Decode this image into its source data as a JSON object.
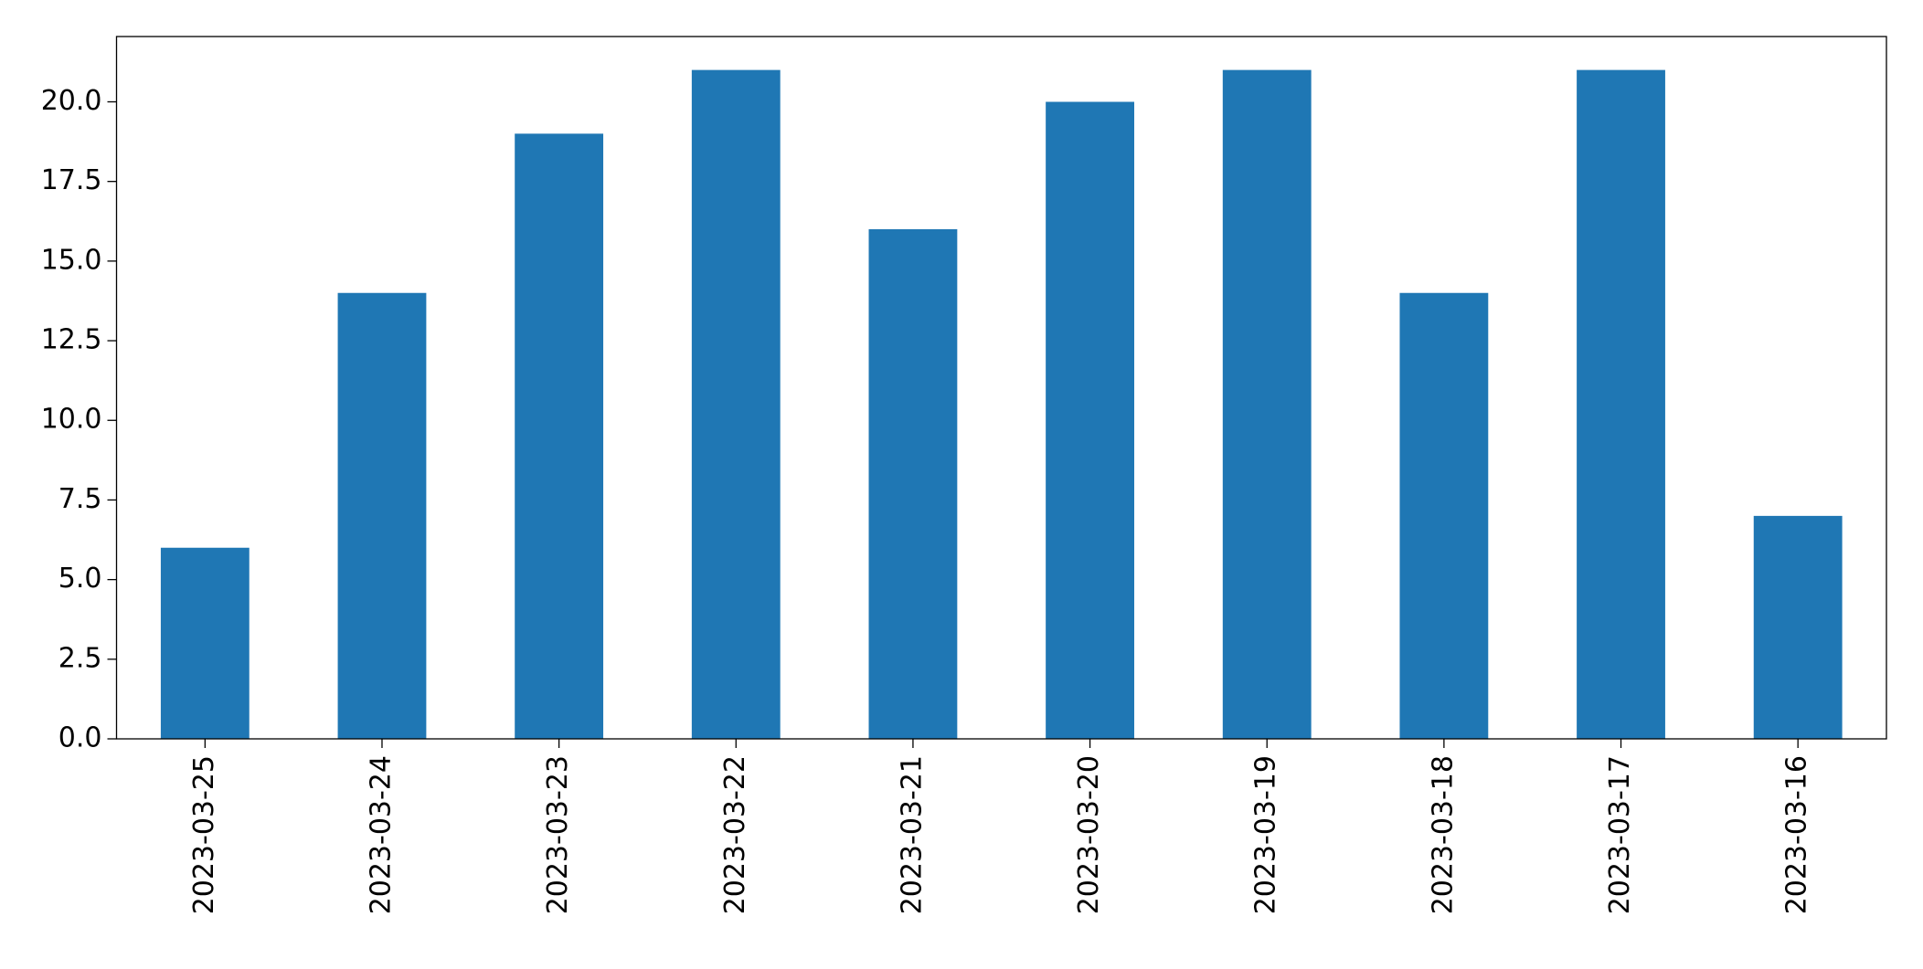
{
  "chart_data": {
    "type": "bar",
    "categories": [
      "2023-03-25",
      "2023-03-24",
      "2023-03-23",
      "2023-03-22",
      "2023-03-21",
      "2023-03-20",
      "2023-03-19",
      "2023-03-18",
      "2023-03-17",
      "2023-03-16"
    ],
    "values": [
      6,
      14,
      19,
      21,
      16,
      20,
      21,
      14,
      21,
      7
    ],
    "color": "#1f77b4",
    "ylim": [
      0,
      22.05
    ],
    "yticks": [
      {
        "value": 0,
        "label": "0.0"
      },
      2.5,
      {
        "value": 5,
        "label": "5.0"
      },
      7.5,
      {
        "value": 10,
        "label": "10.0"
      },
      12.5,
      {
        "value": 15,
        "label": "15.0"
      },
      17.5,
      {
        "value": 20,
        "label": "20.0"
      }
    ],
    "grid": false
  }
}
